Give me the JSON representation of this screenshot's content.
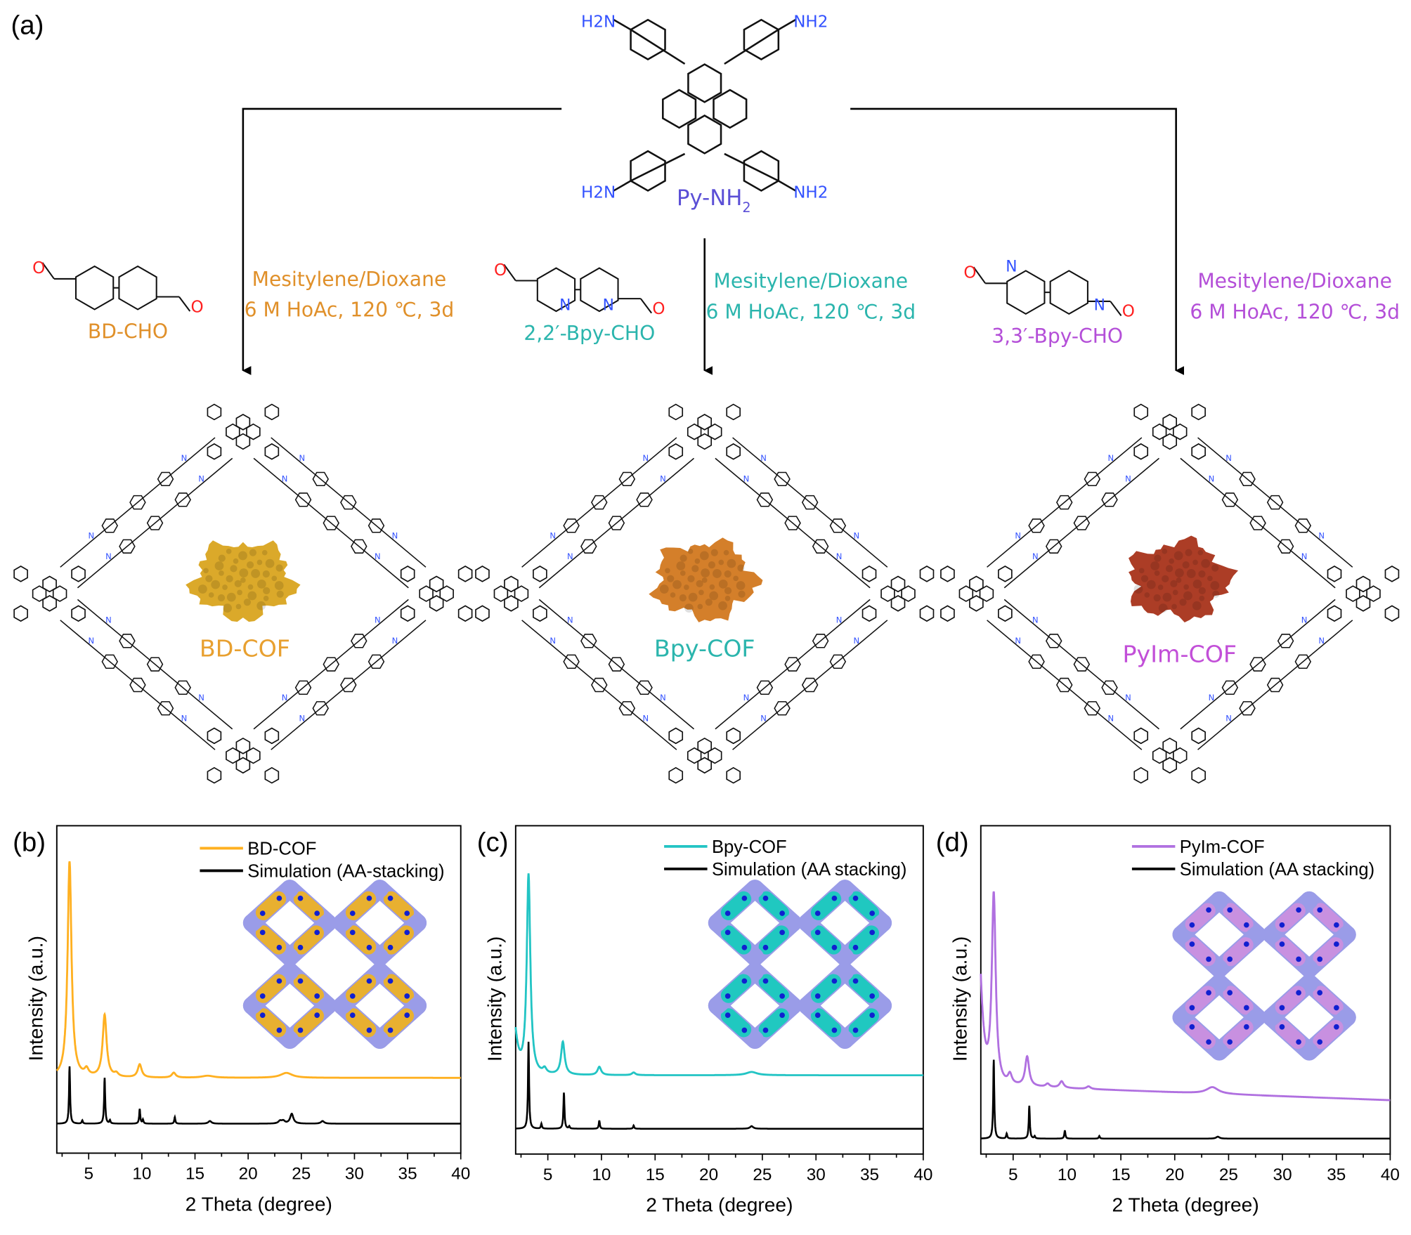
{
  "panels": {
    "a": "(a)",
    "b": "(b)",
    "c": "(c)",
    "d": "(d)"
  },
  "scheme": {
    "amine": {
      "name": "Py-NH2",
      "name_main": "Py-NH",
      "name_sub": "2",
      "group_left": "H2N",
      "group_right": "NH2",
      "color": "#5b4fd6",
      "group_color": "#3352ff"
    },
    "aldehydes": [
      {
        "name": "BD-CHO",
        "color": "#e0902a"
      },
      {
        "name": "2,2′-Bpy-CHO",
        "color": "#2bb5ad"
      },
      {
        "name": "3,3′-Bpy-CHO",
        "color": "#b44fd8"
      }
    ],
    "conditions": [
      {
        "line1": "Mesitylene/Dioxane",
        "line2": "6 M HoAc, 120 ℃, 3d",
        "color": "#e0902a"
      },
      {
        "line1": "Mesitylene/Dioxane",
        "line2": "6 M HoAc, 120 ℃, 3d",
        "color": "#2bb5ad"
      },
      {
        "line1": "Mesitylene/Dioxane",
        "line2": "6 M HoAc, 120 ℃, 3d",
        "color": "#b44fd8"
      }
    ],
    "products": [
      {
        "name": "BD-COF",
        "color": "#e8a030",
        "powder_color": "#d9a41f"
      },
      {
        "name": "Bpy-COF",
        "color": "#2bb5ad",
        "powder_color": "#d2781f"
      },
      {
        "name": "PyIm-COF",
        "color": "#c24fd8",
        "powder_color": "#a8331a"
      }
    ],
    "atoms": {
      "oxygen": "O",
      "nitrogen": "N",
      "oxygen_color": "#ff2020",
      "nitrogen_color": "#3352ff"
    }
  },
  "chart_data": [
    {
      "type": "line",
      "panel": "(b)",
      "xlabel": "2 Theta (degree)",
      "ylabel": "Intensity (a.u.)",
      "xlim": [
        2,
        40
      ],
      "xticks": [
        5,
        10,
        15,
        20,
        25,
        30,
        35,
        40
      ],
      "legend_position": "top-right",
      "grid": false,
      "inset_color": "#e8b030",
      "series": [
        {
          "name": "BD-COF",
          "color": "#ffb020",
          "baseline": 23,
          "width": 0.22,
          "peaks": [
            [
              3.2,
              66
            ],
            [
              4.8,
              2
            ],
            [
              6.5,
              19
            ],
            [
              7.6,
              1
            ],
            [
              9.8,
              4
            ],
            [
              13.0,
              1.5
            ],
            [
              16.2,
              0.6
            ],
            [
              23.6,
              1.5
            ]
          ]
        },
        {
          "name": "Simulation (AA-stacking)",
          "color": "#000000",
          "baseline": 9,
          "width": 0.06,
          "peaks": [
            [
              3.2,
              17.5
            ],
            [
              4.4,
              1
            ],
            [
              6.5,
              14
            ],
            [
              7.0,
              1
            ],
            [
              9.8,
              4.5
            ],
            [
              10.1,
              1.2
            ],
            [
              13.1,
              2
            ],
            [
              16.4,
              0.8
            ],
            [
              23.0,
              0.8
            ],
            [
              23.3,
              0.8
            ],
            [
              24.1,
              3
            ],
            [
              27.0,
              0.8
            ]
          ]
        }
      ]
    },
    {
      "type": "line",
      "panel": "(c)",
      "xlabel": "2 Theta (degree)",
      "ylabel": "Intensity (a.u.)",
      "xlim": [
        2,
        40
      ],
      "xticks": [
        5,
        10,
        15,
        20,
        25,
        30,
        35,
        40
      ],
      "legend_position": "top-right",
      "grid": false,
      "inset_color": "#20c8c0",
      "series": [
        {
          "name": "Bpy-COF",
          "color": "#22c4c4",
          "baseline": 24,
          "width": 0.2,
          "low_angle": 13,
          "peaks": [
            [
              3.2,
              61
            ],
            [
              4.7,
              1.5
            ],
            [
              6.4,
              10
            ],
            [
              9.8,
              2.5
            ],
            [
              13.0,
              0.8
            ],
            [
              24.0,
              1
            ]
          ]
        },
        {
          "name": "Simulation (AA stacking)",
          "color": "#000000",
          "baseline": 7.7,
          "width": 0.06,
          "peaks": [
            [
              3.2,
              26.5
            ],
            [
              4.4,
              1.5
            ],
            [
              6.5,
              11
            ],
            [
              7.0,
              0.7
            ],
            [
              9.8,
              2.5
            ],
            [
              13.0,
              1
            ],
            [
              24.0,
              0.8
            ]
          ]
        }
      ]
    },
    {
      "type": "line",
      "panel": "(d)",
      "xlabel": "2 Theta (degree)",
      "ylabel": "Intensity (a.u.)",
      "xlim": [
        2,
        40
      ],
      "xticks": [
        5,
        10,
        15,
        20,
        25,
        30,
        35,
        40
      ],
      "legend_position": "top-right",
      "grid": false,
      "inset_color": "#c890e0",
      "series": [
        {
          "name": "PyIm-COF",
          "color": "#b070e0",
          "baseline": 20,
          "baseline_slope": -0.12,
          "width": 0.22,
          "low_angle": 32,
          "peaks": [
            [
              3.2,
              58
            ],
            [
              4.7,
              3
            ],
            [
              6.3,
              9
            ],
            [
              8.2,
              1
            ],
            [
              9.5,
              2
            ],
            [
              12.0,
              0.8
            ],
            [
              23.5,
              2
            ]
          ]
        },
        {
          "name": "Simulation (AA stacking)",
          "color": "#000000",
          "baseline": 4.7,
          "width": 0.06,
          "peaks": [
            [
              3.2,
              24
            ],
            [
              4.4,
              1.5
            ],
            [
              6.5,
              10
            ],
            [
              7.0,
              0.7
            ],
            [
              9.8,
              2.5
            ],
            [
              13.0,
              0.8
            ],
            [
              24.0,
              0.6
            ]
          ]
        }
      ]
    }
  ]
}
